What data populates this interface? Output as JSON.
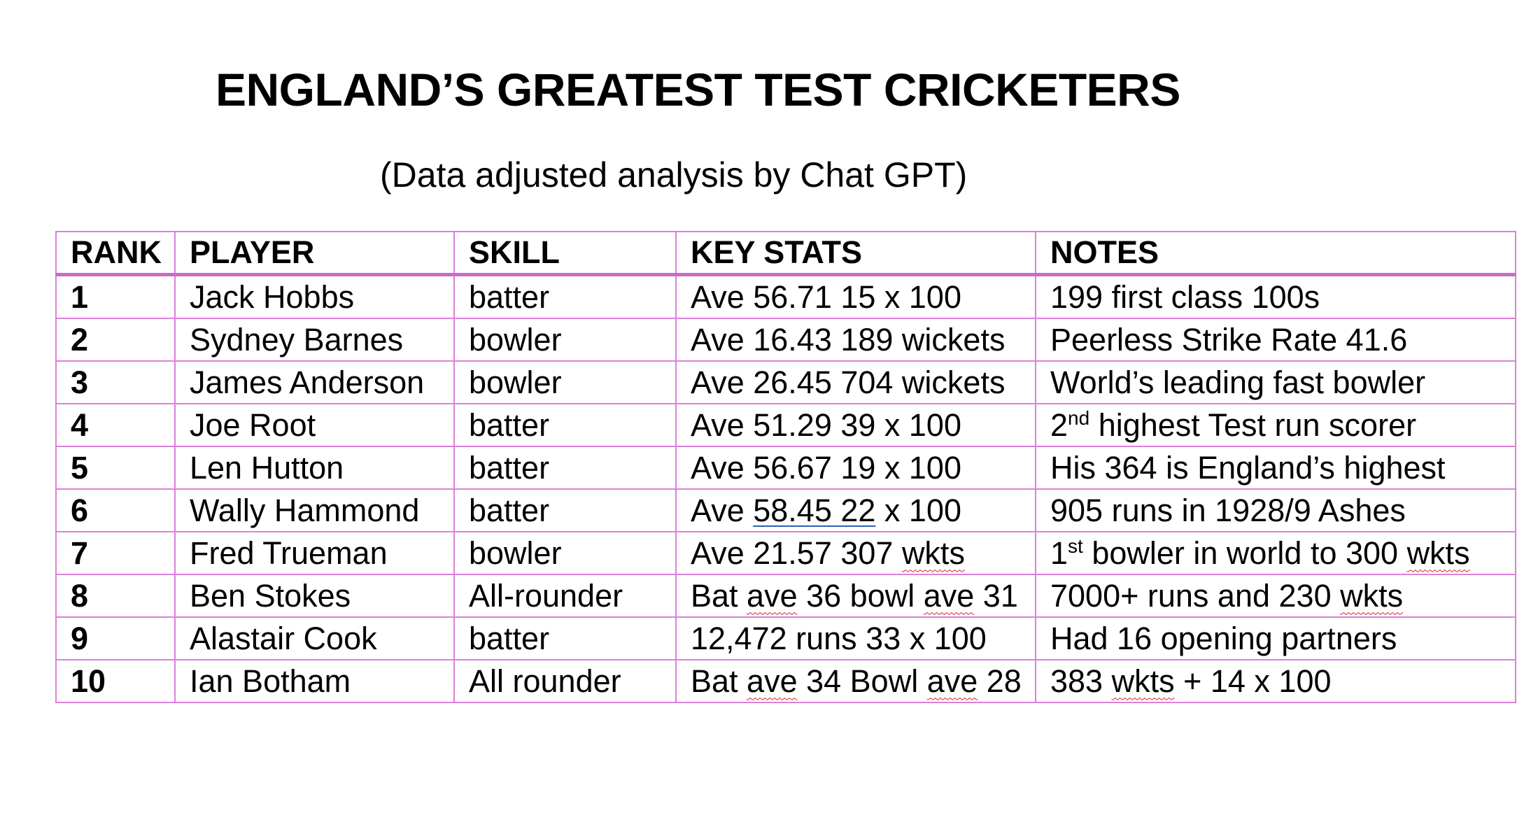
{
  "title": "ENGLAND’S GREATEST TEST CRICKETERS",
  "subtitle": "(Data adjusted analysis by Chat GPT)",
  "colors": {
    "table_border": "#dd7fdd",
    "header_rule": "#c96cc9",
    "link_underline": "#2f5fb3",
    "spellcheck_underline": "#d02020"
  },
  "table": {
    "headers": [
      "RANK",
      "PLAYER",
      "SKILL",
      "KEY STATS",
      "NOTES"
    ],
    "rows": [
      {
        "rank": "1",
        "player": "Jack Hobbs",
        "skill": "batter",
        "stats": [
          {
            "t": "Ave 56.71 15 x 100"
          }
        ],
        "notes": [
          {
            "t": "199 first class 100s"
          }
        ]
      },
      {
        "rank": "2",
        "player": "Sydney Barnes",
        "skill": "bowler",
        "stats": [
          {
            "t": "Ave 16.43 189 wickets"
          }
        ],
        "notes": [
          {
            "t": "Peerless Strike Rate 41.6"
          }
        ]
      },
      {
        "rank": "3",
        "player": "James Anderson",
        "skill": "bowler",
        "stats": [
          {
            "t": "Ave 26.45 704 wickets"
          }
        ],
        "notes": [
          {
            "t": "World’s leading fast bowler"
          }
        ]
      },
      {
        "rank": "4",
        "player": "Joe Root",
        "skill": "batter",
        "stats": [
          {
            "t": "Ave 51.29 39 x 100"
          }
        ],
        "notes": [
          {
            "t": "2"
          },
          {
            "t": "nd",
            "sup": true
          },
          {
            "t": " highest Test run scorer"
          }
        ]
      },
      {
        "rank": "5",
        "player": "Len Hutton",
        "skill": "batter",
        "stats": [
          {
            "t": "Ave 56.67 19 x 100"
          }
        ],
        "notes": [
          {
            "t": "His 364 is England’s highest"
          }
        ]
      },
      {
        "rank": "6",
        "player": "Wally Hammond",
        "skill": "batter",
        "stats": [
          {
            "t": "Ave "
          },
          {
            "t": "58.45  22",
            "link": true
          },
          {
            "t": " x 100"
          }
        ],
        "notes": [
          {
            "t": "905 runs in 1928/9 Ashes"
          }
        ]
      },
      {
        "rank": "7",
        "player": "Fred Trueman",
        "skill": "bowler",
        "stats": [
          {
            "t": "Ave 21.57 307 "
          },
          {
            "t": "wkts",
            "spell": true
          }
        ],
        "notes": [
          {
            "t": "1"
          },
          {
            "t": "st",
            "sup": true
          },
          {
            "t": " bowler in world to 300 "
          },
          {
            "t": "wkts",
            "spell": true
          }
        ]
      },
      {
        "rank": "8",
        "player": "Ben Stokes",
        "skill": "All-rounder",
        "stats": [
          {
            "t": "Bat "
          },
          {
            "t": "ave",
            "spell": true
          },
          {
            "t": " 36 bowl "
          },
          {
            "t": "ave",
            "spell": true
          },
          {
            "t": " 31"
          }
        ],
        "notes": [
          {
            "t": "7000+ runs and 230 "
          },
          {
            "t": "wkts",
            "spell": true
          }
        ]
      },
      {
        "rank": "9",
        "player": "Alastair Cook",
        "skill": "batter",
        "stats": [
          {
            "t": "12,472 runs 33 x 100"
          }
        ],
        "notes": [
          {
            "t": "Had 16 opening partners"
          }
        ]
      },
      {
        "rank": "10",
        "player": "Ian Botham",
        "skill": "All rounder",
        "stats": [
          {
            "t": "Bat "
          },
          {
            "t": "ave",
            "spell": true
          },
          {
            "t": " 34 Bowl "
          },
          {
            "t": "ave",
            "spell": true
          },
          {
            "t": " 28"
          }
        ],
        "notes": [
          {
            "t": "383 "
          },
          {
            "t": "wkts",
            "spell": true
          },
          {
            "t": " + 14 x 100"
          }
        ]
      }
    ]
  }
}
